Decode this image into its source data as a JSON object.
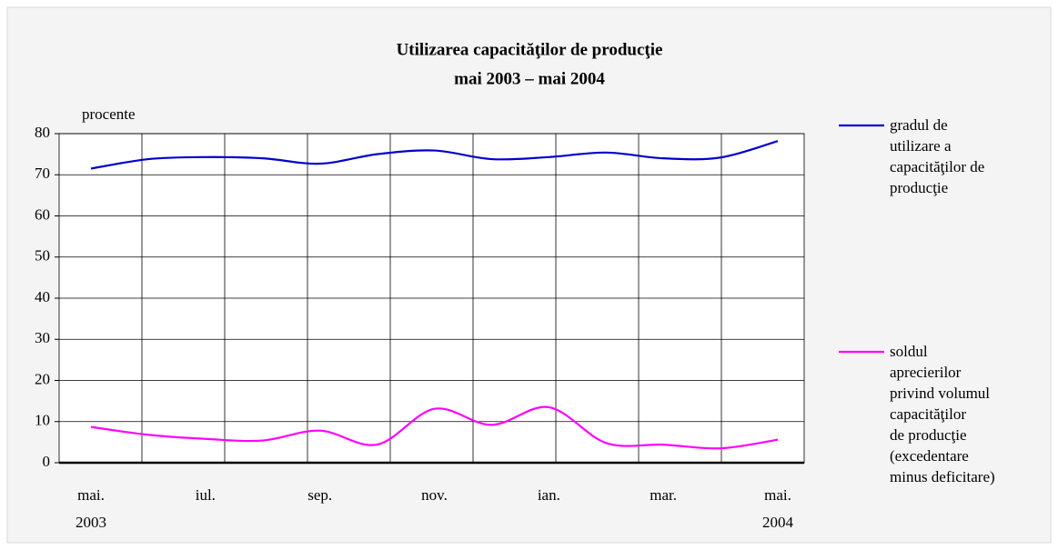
{
  "chart_data": {
    "type": "line",
    "title": "Utilizarea capacităţilor de producţie",
    "subtitle": "mai 2003 – mai 2004",
    "y_label": "procente",
    "categories": [
      "mai. 2003",
      null,
      "iul.",
      null,
      "sep.",
      null,
      "nov.",
      null,
      "ian.",
      null,
      "mar.",
      null,
      "mai. 2004"
    ],
    "series": [
      {
        "name": "gradul de\nutilizare a\ncapacităţilor de\nproducţie",
        "color": "#0000cc",
        "values": [
          71.5,
          73.8,
          74.3,
          74.0,
          72.7,
          75.0,
          75.9,
          73.8,
          74.3,
          75.4,
          74.0,
          74.2,
          78.2
        ]
      },
      {
        "name": "soldul\naprecierilor\nprivind volumul\ncapacităţilor\nde producţie\n(excedentare\nminus deficitare)",
        "color": "#ff00ff",
        "values": [
          8.7,
          6.8,
          5.8,
          5.4,
          7.8,
          4.4,
          13.1,
          9.2,
          13.5,
          4.8,
          4.4,
          3.5,
          5.6
        ]
      }
    ],
    "ylim": [
      0,
      80
    ],
    "yticks": [
      0,
      10,
      20,
      30,
      40,
      50,
      60,
      70,
      80
    ],
    "grid": true
  }
}
